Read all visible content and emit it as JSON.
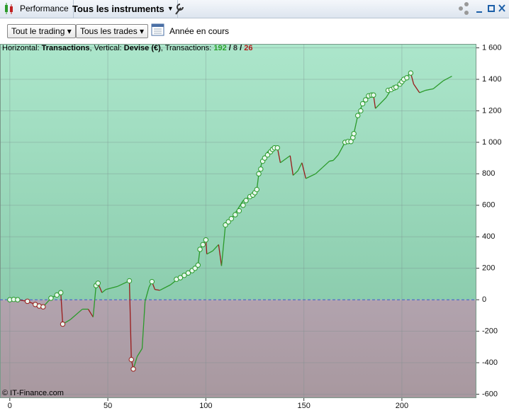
{
  "toolbar": {
    "tabs": [
      "Performance",
      "Tous les instruments"
    ]
  },
  "filters": [
    "Tout le trading",
    "Tous les trades"
  ],
  "period": "Année en cours",
  "footer": "© IT-Finance.com",
  "chart_data": {
    "type": "line",
    "header": [
      {
        "text": "Horizontal: "
      },
      {
        "text": "Transactions",
        "bold": true
      },
      {
        "text": ", Vertical: "
      },
      {
        "text": "Devise (€)",
        "bold": true
      },
      {
        "text": ", Transactions: "
      },
      {
        "text": 192,
        "bold": true,
        "color": "#2aa02a"
      },
      {
        "text": " / ",
        "bold": true
      },
      {
        "text": 8,
        "bold": true,
        "color": "#333333"
      },
      {
        "text": " / ",
        "bold": true
      },
      {
        "text": 26,
        "bold": true,
        "color": "#b01c1c"
      }
    ],
    "x": [
      0,
      3,
      4,
      9,
      13,
      17,
      21,
      26,
      27,
      31,
      37,
      40,
      42.5,
      44,
      45,
      47,
      49,
      55,
      61,
      62,
      63,
      65,
      67.5,
      69,
      71,
      72.5,
      74,
      76.5,
      82,
      85.5,
      89,
      93,
      96,
      97,
      100,
      100.5,
      103.5,
      106.5,
      108,
      110,
      112.5,
      115.5,
      119,
      122.5,
      126,
      127,
      129,
      131.5,
      136.5,
      138,
      143,
      144.5,
      147,
      149,
      151,
      156,
      159.5,
      163,
      165,
      167.5,
      171,
      174,
      175.5,
      177.5,
      180,
      183,
      185.5,
      186.5,
      192,
      194.5,
      197,
      201,
      204.5,
      206,
      209,
      212,
      216,
      221,
      225.5
    ],
    "values": [
      0,
      2,
      0,
      -10,
      -30,
      -45,
      10,
      45,
      -155,
      -125,
      -60,
      -60,
      -110,
      90,
      105,
      45,
      65,
      85,
      120,
      -380,
      -440,
      -360,
      -310,
      -10,
      80,
      115,
      65,
      60,
      95,
      130,
      160,
      185,
      220,
      320,
      380,
      290,
      310,
      350,
      215,
      475,
      505,
      560,
      630,
      655,
      700,
      800,
      890,
      940,
      965,
      870,
      915,
      790,
      820,
      870,
      770,
      800,
      840,
      880,
      885,
      920,
      1000,
      1005,
      1055,
      1170,
      1245,
      1295,
      1300,
      1215,
      1285,
      1335,
      1350,
      1400,
      1440,
      1370,
      1315,
      1330,
      1340,
      1390,
      1420
    ],
    "marker_x": [
      0,
      2,
      4,
      9,
      13,
      15,
      17,
      21,
      24,
      26,
      27,
      44,
      45,
      61,
      62,
      63,
      72.5,
      85,
      87,
      89,
      91,
      93,
      94.5,
      96,
      97,
      98.5,
      100,
      110,
      111.5,
      113,
      115,
      117,
      119,
      120.5,
      122.5,
      124,
      125,
      126,
      127,
      128,
      129,
      130,
      131.5,
      133,
      134,
      135,
      136.5,
      171,
      172.5,
      174,
      175,
      175.5,
      177.5,
      179,
      180,
      181.5,
      183,
      184.5,
      185.5,
      193,
      194.5,
      196,
      197,
      199,
      200,
      201,
      202.5,
      204.5
    ],
    "marker_values": [
      0,
      2,
      0,
      -10,
      -30,
      -40,
      -45,
      10,
      30,
      45,
      -155,
      90,
      105,
      120,
      -380,
      -440,
      115,
      130,
      140,
      155,
      170,
      185,
      200,
      220,
      320,
      350,
      380,
      475,
      495,
      515,
      540,
      565,
      600,
      630,
      655,
      665,
      680,
      700,
      800,
      830,
      880,
      900,
      920,
      940,
      955,
      965,
      965,
      1000,
      1005,
      1005,
      1030,
      1055,
      1170,
      1200,
      1245,
      1270,
      1295,
      1300,
      1300,
      1330,
      1335,
      1345,
      1350,
      1370,
      1385,
      1400,
      1410,
      1440
    ],
    "up_color": "#2a9a2a",
    "down_color": "#9a1a1a",
    "xlim": [
      -5,
      238
    ],
    "xticks": [
      0,
      50,
      100,
      150,
      200
    ],
    "ylim": [
      -625,
      1625
    ],
    "yticks": [
      {
        "value": 1600,
        "label": "1 600"
      },
      {
        "value": 1400,
        "label": "1 400"
      },
      {
        "value": 1200,
        "label": "1 200"
      },
      {
        "value": 1000,
        "label": "1 000"
      },
      800,
      600,
      400,
      200,
      0,
      -200,
      -400,
      -600
    ],
    "grid": true
  }
}
